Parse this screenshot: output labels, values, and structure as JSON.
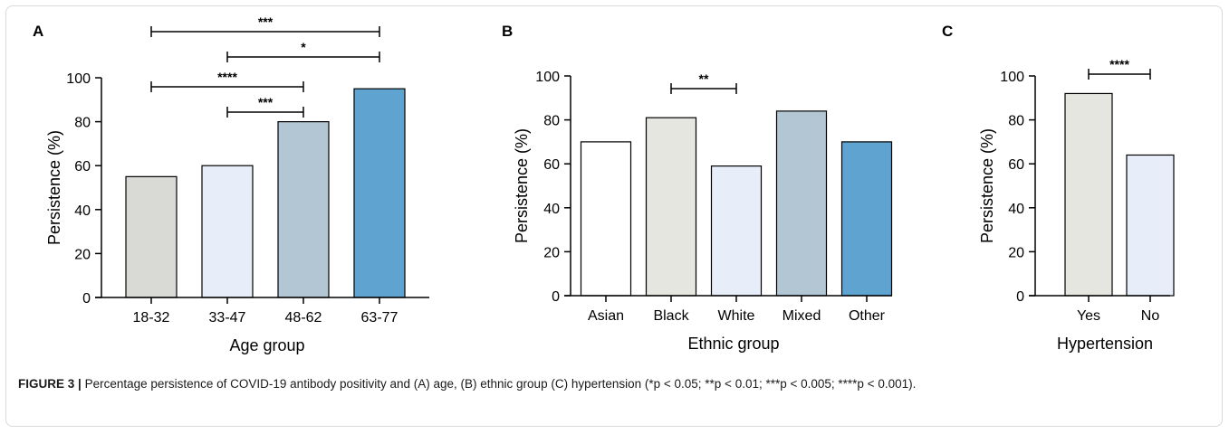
{
  "chart_data": [
    {
      "panel": "A",
      "type": "bar",
      "categories": [
        "18-32",
        "33-47",
        "48-62",
        "63-77"
      ],
      "values": [
        55,
        60,
        80,
        95
      ],
      "colors": [
        "#d9dad5",
        "#e7eef9",
        "#b2c6d3",
        "#5fa4d0"
      ],
      "xlabel": "Age group",
      "ylabel": "Persistence (%)",
      "ylim": [
        0,
        100
      ],
      "yticks": [
        0,
        20,
        40,
        60,
        80,
        100
      ],
      "grid": false,
      "significance": [
        {
          "from": 0,
          "to": 3,
          "label": "***"
        },
        {
          "from": 1,
          "to": 3,
          "label": "*"
        },
        {
          "from": 0,
          "to": 2,
          "label": "****"
        },
        {
          "from": 1,
          "to": 2,
          "label": "***"
        }
      ]
    },
    {
      "panel": "B",
      "type": "bar",
      "categories": [
        "Asian",
        "Black",
        "White",
        "Mixed",
        "Other"
      ],
      "values": [
        70,
        81,
        59,
        84,
        70
      ],
      "colors": [
        "#ffffff",
        "#e6e6e1",
        "#e7eef9",
        "#b2c6d3",
        "#5fa4d0"
      ],
      "xlabel": "Ethnic group",
      "ylabel": "Persistence (%)",
      "ylim": [
        0,
        100
      ],
      "yticks": [
        0,
        20,
        40,
        60,
        80,
        100
      ],
      "grid": false,
      "significance": [
        {
          "from": 1,
          "to": 2,
          "label": "**"
        }
      ]
    },
    {
      "panel": "C",
      "type": "bar",
      "categories": [
        "Yes",
        "No"
      ],
      "values": [
        92,
        64
      ],
      "colors": [
        "#e6e6e1",
        "#e7eef9"
      ],
      "xlabel": "Hypertension",
      "ylabel": "Persistence (%)",
      "ylim": [
        0,
        100
      ],
      "yticks": [
        0,
        20,
        40,
        60,
        80,
        100
      ],
      "grid": false,
      "significance": [
        {
          "from": 0,
          "to": 1,
          "label": "****"
        }
      ]
    }
  ],
  "caption": {
    "label": "FIGURE 3 |",
    "text": "Percentage persistence of COVID-19 antibody positivity and (A) age, (B) ethnic group (C) hypertension (*p < 0.05; **p < 0.01; ***p < 0.005; ****p < 0.001)."
  }
}
